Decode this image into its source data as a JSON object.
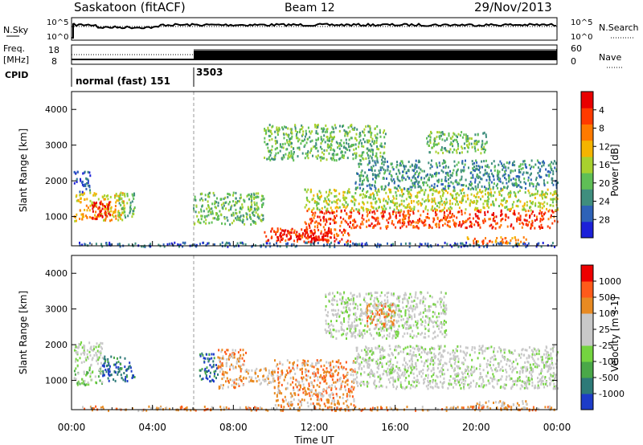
{
  "header": {
    "station": "Saskatoon (fitACF)",
    "beam": "Beam 12",
    "date": "29/Nov/2013"
  },
  "noise_panel": {
    "left_label": "N.Sky",
    "right_label": "N.Search",
    "left_ticks": [
      "10^5",
      "10^0"
    ],
    "right_ticks": [
      "10^5",
      "10^0"
    ]
  },
  "freq_panel": {
    "left_label_line1": "Freq.",
    "left_label_line2": "[MHz]",
    "left_ticks": [
      "18",
      "8"
    ],
    "right_label": "Nave",
    "right_ticks": [
      "60",
      "0"
    ]
  },
  "cpid_panel": {
    "label": "CPID",
    "segments": [
      {
        "name": "normal (fast) 151",
        "start_hour": 0,
        "end_hour": 6
      },
      {
        "name": "3503",
        "start_hour": 6,
        "end_hour": 24
      }
    ]
  },
  "chart_data": [
    {
      "type": "heatmap",
      "name": "power",
      "ylabel": "Slant Range [km]",
      "xlim_hours": [
        0,
        24
      ],
      "ylim": [
        180,
        4500
      ],
      "yticks": [
        1000,
        2000,
        3000,
        4000
      ],
      "colorbar": {
        "label": "Power [dB]",
        "ticks": [
          "4",
          "8",
          "12",
          "16",
          "20",
          "24",
          "28"
        ],
        "colors": [
          "#1c20d8",
          "#2e62b8",
          "#3f8e7e",
          "#5fbf56",
          "#a8d12e",
          "#f4b400",
          "#ff7a00",
          "#ff3a00",
          "#e80000"
        ]
      },
      "regions": [
        {
          "t0": 0.1,
          "t1": 2.6,
          "r0": 900,
          "r1": 1700,
          "level": 5
        },
        {
          "t0": 1.0,
          "t1": 1.9,
          "r0": 950,
          "r1": 1450,
          "level": 8
        },
        {
          "t0": 0.1,
          "t1": 0.9,
          "r0": 1700,
          "r1": 2300,
          "level": 1
        },
        {
          "t0": 2.3,
          "t1": 3.1,
          "r0": 1000,
          "r1": 1700,
          "level": 3
        },
        {
          "t0": 6.0,
          "t1": 9.5,
          "r0": 800,
          "r1": 1700,
          "level": 3
        },
        {
          "t0": 9.5,
          "t1": 13.8,
          "r0": 300,
          "r1": 700,
          "level": 7
        },
        {
          "t0": 10.2,
          "t1": 12.8,
          "r0": 350,
          "r1": 650,
          "level": 8
        },
        {
          "t0": 11.5,
          "t1": 24.0,
          "r0": 700,
          "r1": 1200,
          "level": 7
        },
        {
          "t0": 11.5,
          "t1": 24.0,
          "r0": 1200,
          "r1": 1800,
          "level": 4
        },
        {
          "t0": 14.0,
          "t1": 24.0,
          "r0": 1800,
          "r1": 2600,
          "level": 2
        },
        {
          "t0": 9.5,
          "t1": 15.5,
          "r0": 2600,
          "r1": 3600,
          "level": 3
        },
        {
          "t0": 17.5,
          "t1": 20.5,
          "r0": 2800,
          "r1": 3400,
          "level": 3
        },
        {
          "t0": 19.5,
          "t1": 22.5,
          "r0": 250,
          "r1": 450,
          "level": 6
        },
        {
          "t0": 0.2,
          "t1": 24.0,
          "r0": 180,
          "r1": 300,
          "level": 1
        }
      ]
    },
    {
      "type": "heatmap",
      "name": "velocity",
      "ylabel": "Slant Range [km]",
      "xlabel": "Time UT",
      "xlim_hours": [
        0,
        24
      ],
      "ylim": [
        180,
        4500
      ],
      "yticks": [
        1000,
        2000,
        3000,
        4000
      ],
      "xticks": [
        "00:00",
        "04:00",
        "08:00",
        "12:00",
        "16:00",
        "20:00",
        "00:00"
      ],
      "colorbar": {
        "label": "Velocity [m s-1]",
        "ticks": [
          "1000",
          "500",
          "100",
          "25",
          "-25",
          "-100",
          "-500",
          "-1000"
        ],
        "colors": [
          "#1d3cc8",
          "#2d7a78",
          "#4aa848",
          "#74d440",
          "#c8c8c8",
          "#c8c8c8",
          "#e88a22",
          "#ff5a1a",
          "#ee0000"
        ]
      },
      "regions": [
        {
          "t0": 0.1,
          "t1": 1.5,
          "r0": 1400,
          "r1": 2100,
          "level": 4
        },
        {
          "t0": 0.1,
          "t1": 1.5,
          "r0": 900,
          "r1": 1400,
          "level": 3
        },
        {
          "t0": 1.5,
          "t1": 3.1,
          "r0": 1000,
          "r1": 1700,
          "level": 1
        },
        {
          "t0": 6.3,
          "t1": 7.2,
          "r0": 1000,
          "r1": 1800,
          "level": 1
        },
        {
          "t0": 7.2,
          "t1": 8.6,
          "r0": 800,
          "r1": 1900,
          "level": 6
        },
        {
          "t0": 8.6,
          "t1": 10.0,
          "r0": 900,
          "r1": 1400,
          "level": 5
        },
        {
          "t0": 10.0,
          "t1": 14.0,
          "r0": 300,
          "r1": 1600,
          "level": 6
        },
        {
          "t0": 14.0,
          "t1": 24.0,
          "r0": 800,
          "r1": 2000,
          "level": 4
        },
        {
          "t0": 12.5,
          "t1": 18.5,
          "r0": 2200,
          "r1": 3500,
          "level": 4
        },
        {
          "t0": 14.5,
          "t1": 16.0,
          "r0": 2500,
          "r1": 3200,
          "level": 6
        },
        {
          "t0": 20.0,
          "t1": 22.5,
          "r0": 250,
          "r1": 450,
          "level": 5
        },
        {
          "t0": 0.2,
          "t1": 24.0,
          "r0": 180,
          "r1": 300,
          "level": 6
        }
      ]
    }
  ]
}
